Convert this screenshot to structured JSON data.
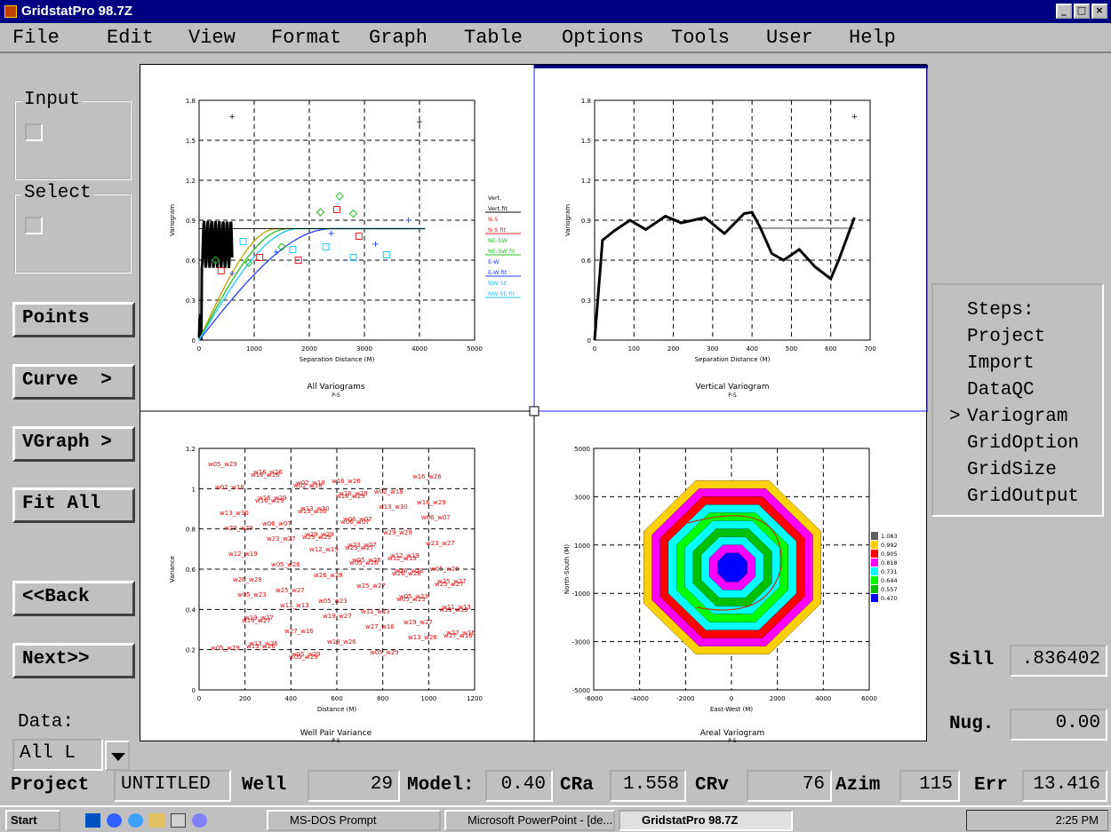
{
  "window": {
    "title": "GridstatPro 98.7Z",
    "controls": [
      "_",
      "□",
      "×"
    ]
  },
  "menu": [
    "File",
    "Edit",
    "View",
    "Format",
    "Graph",
    "Table",
    "Options",
    "Tools",
    "User",
    "Help"
  ],
  "left_panel": {
    "input_label": "Input",
    "select_label": "Select",
    "buttons": [
      "Points",
      "Curve  >",
      "VGraph >",
      "Fit All",
      "<<Back",
      "Next>>"
    ],
    "data_label": "Data:",
    "data_value": "All L"
  },
  "steps": {
    "title": "Steps:",
    "items": [
      "Project",
      "Import",
      "DataQC",
      "Variogram",
      "GridOption",
      "GridSize",
      "GridOutput"
    ],
    "current_marker": ">"
  },
  "params": {
    "sill_label": "Sill",
    "sill_value": ".836402",
    "nug_label": "Nug.",
    "nug_value": "0.00"
  },
  "status": {
    "project_label": "Project",
    "project_value": "UNTITLED",
    "well_label": "Well",
    "well_value": "29",
    "model_label": "Model:",
    "model_value": "0.40",
    "cra_label": "CRa",
    "cra_value": "1.558",
    "crv_label": "CRv",
    "crv_value": "76",
    "azim_label": "Azim",
    "azim_value": "115",
    "err_label": "Err",
    "err_value": "13.416"
  },
  "graphs": {
    "g1": {
      "title": "All Variograms",
      "sub": "P-S",
      "xlabel": "Separation Distance (M)",
      "ylabel": "Variogram",
      "xticks": [
        "0",
        "1000",
        "2000",
        "3000",
        "4000",
        "5000"
      ],
      "yticks": [
        "0",
        "0.3",
        "0.6",
        "0.9",
        "1.2",
        "1.5",
        "1.8"
      ],
      "legend": [
        "Vert.",
        "Vert.fit",
        "N-S",
        "N-S fit",
        "NE-SW",
        "NE-SW fit",
        "E-W",
        "E-W fit",
        "NW-SE",
        "NW-SE fit"
      ]
    },
    "g2": {
      "title": "Vertical Variogram",
      "sub": "P-S",
      "xlabel": "Separation Distance (M)",
      "ylabel": "Variogram",
      "xticks": [
        "0",
        "100",
        "200",
        "300",
        "400",
        "500",
        "600",
        "700"
      ],
      "yticks": [
        "0",
        "0.3",
        "0.6",
        "0.9",
        "1.2",
        "1.5",
        "1.8"
      ]
    },
    "g3": {
      "title": "Well Pair Variance",
      "sub": "P-S",
      "xlabel": "Distance (M)",
      "ylabel": "Variance",
      "xticks": [
        "0",
        "200",
        "400",
        "600",
        "800",
        "1000",
        "1200"
      ],
      "yticks": [
        "0",
        "0.2",
        "0.4",
        "0.6",
        "0.8",
        "1",
        "1.2"
      ],
      "pair_labels": [
        "w05_w29",
        "w16_w29",
        "w29_w29",
        "w05_w26",
        "w05_w23",
        "w27_w16",
        "w16_w26",
        "w13_w30",
        "w23_w27",
        "w26_w28",
        "w11_w13",
        "w13_w26",
        "w02_w18",
        "w06_w07",
        "w12_w19",
        "w25_w27",
        "w19_w27"
      ]
    },
    "g4": {
      "title": "Areal Variogram",
      "sub": "P-S",
      "xlabel": "East-West (M)",
      "ylabel": "North-South (M)",
      "xticks": [
        "-6000",
        "-4000",
        "-2000",
        "0",
        "2000",
        "4000",
        "6000"
      ],
      "yticks": [
        "-5000",
        "-3000",
        "-1000",
        "1000",
        "3000",
        "5000"
      ],
      "legend": [
        "1.083",
        "0.992",
        "0.905",
        "0.818",
        "0.731",
        "0.644",
        "0.557",
        "0.470"
      ]
    }
  },
  "taskbar": {
    "start": "Start",
    "items": [
      "MS-DOS Prompt",
      "Microsoft PowerPoint - [de...",
      "GridstatPro 98.7Z"
    ],
    "clock": "2:25 PM"
  },
  "colors": {
    "ns": "#e02020",
    "nesw": "#20c020",
    "ew": "#2040ff",
    "nwse": "#20c8ff",
    "ramp": [
      "#606060",
      "#ffd000",
      "#ff0000",
      "#ff00ff",
      "#00ffff",
      "#00ff00",
      "#00c000",
      "#0000ff"
    ]
  },
  "chart_data": [
    {
      "type": "scatter",
      "title": "All Variograms",
      "xlabel": "Separation Distance (M)",
      "ylabel": "Variogram",
      "xlim": [
        0,
        5000
      ],
      "ylim": [
        0,
        1.8
      ],
      "series": [
        {
          "name": "N-S",
          "x": [
            400,
            1100,
            1800,
            2500,
            2900
          ],
          "y": [
            0.52,
            0.62,
            0.6,
            0.98,
            0.78
          ]
        },
        {
          "name": "NE-SW",
          "x": [
            300,
            900,
            1500,
            2200,
            2550,
            2800
          ],
          "y": [
            0.6,
            0.58,
            0.7,
            0.96,
            1.08,
            0.95
          ]
        },
        {
          "name": "E-W",
          "x": [
            600,
            1400,
            2400,
            3200,
            3800
          ],
          "y": [
            0.5,
            0.66,
            0.8,
            0.72,
            0.9
          ]
        },
        {
          "name": "NW-SE",
          "x": [
            800,
            1700,
            2300,
            2800,
            3400
          ],
          "y": [
            0.74,
            0.68,
            0.7,
            0.62,
            0.64
          ]
        }
      ],
      "sill": 0.836402
    },
    {
      "type": "line",
      "title": "Vertical Variogram",
      "xlabel": "Separation Distance (M)",
      "ylabel": "Variogram",
      "xlim": [
        0,
        700
      ],
      "ylim": [
        0,
        1.8
      ],
      "x": [
        0,
        20,
        50,
        90,
        130,
        180,
        220,
        280,
        330,
        380,
        400,
        420,
        450,
        480,
        520,
        560,
        600,
        620,
        660
      ],
      "y": [
        0.0,
        0.75,
        0.82,
        0.9,
        0.83,
        0.93,
        0.88,
        0.92,
        0.8,
        0.95,
        0.96,
        0.85,
        0.65,
        0.6,
        0.68,
        0.55,
        0.46,
        0.6,
        0.92
      ]
    },
    {
      "type": "scatter",
      "title": "Well Pair Variance",
      "xlabel": "Distance (M)",
      "ylabel": "Variance",
      "xlim": [
        0,
        1200
      ],
      "ylim": [
        0,
        1.2
      ]
    },
    {
      "type": "heatmap",
      "title": "Areal Variogram",
      "xlabel": "East-West (M)",
      "ylabel": "North-South (M)",
      "xlim": [
        -6000,
        6000
      ],
      "ylim": [
        -5000,
        5000
      ],
      "legend": [
        1.083,
        0.992,
        0.905,
        0.818,
        0.731,
        0.644,
        0.557,
        0.47
      ]
    }
  ]
}
